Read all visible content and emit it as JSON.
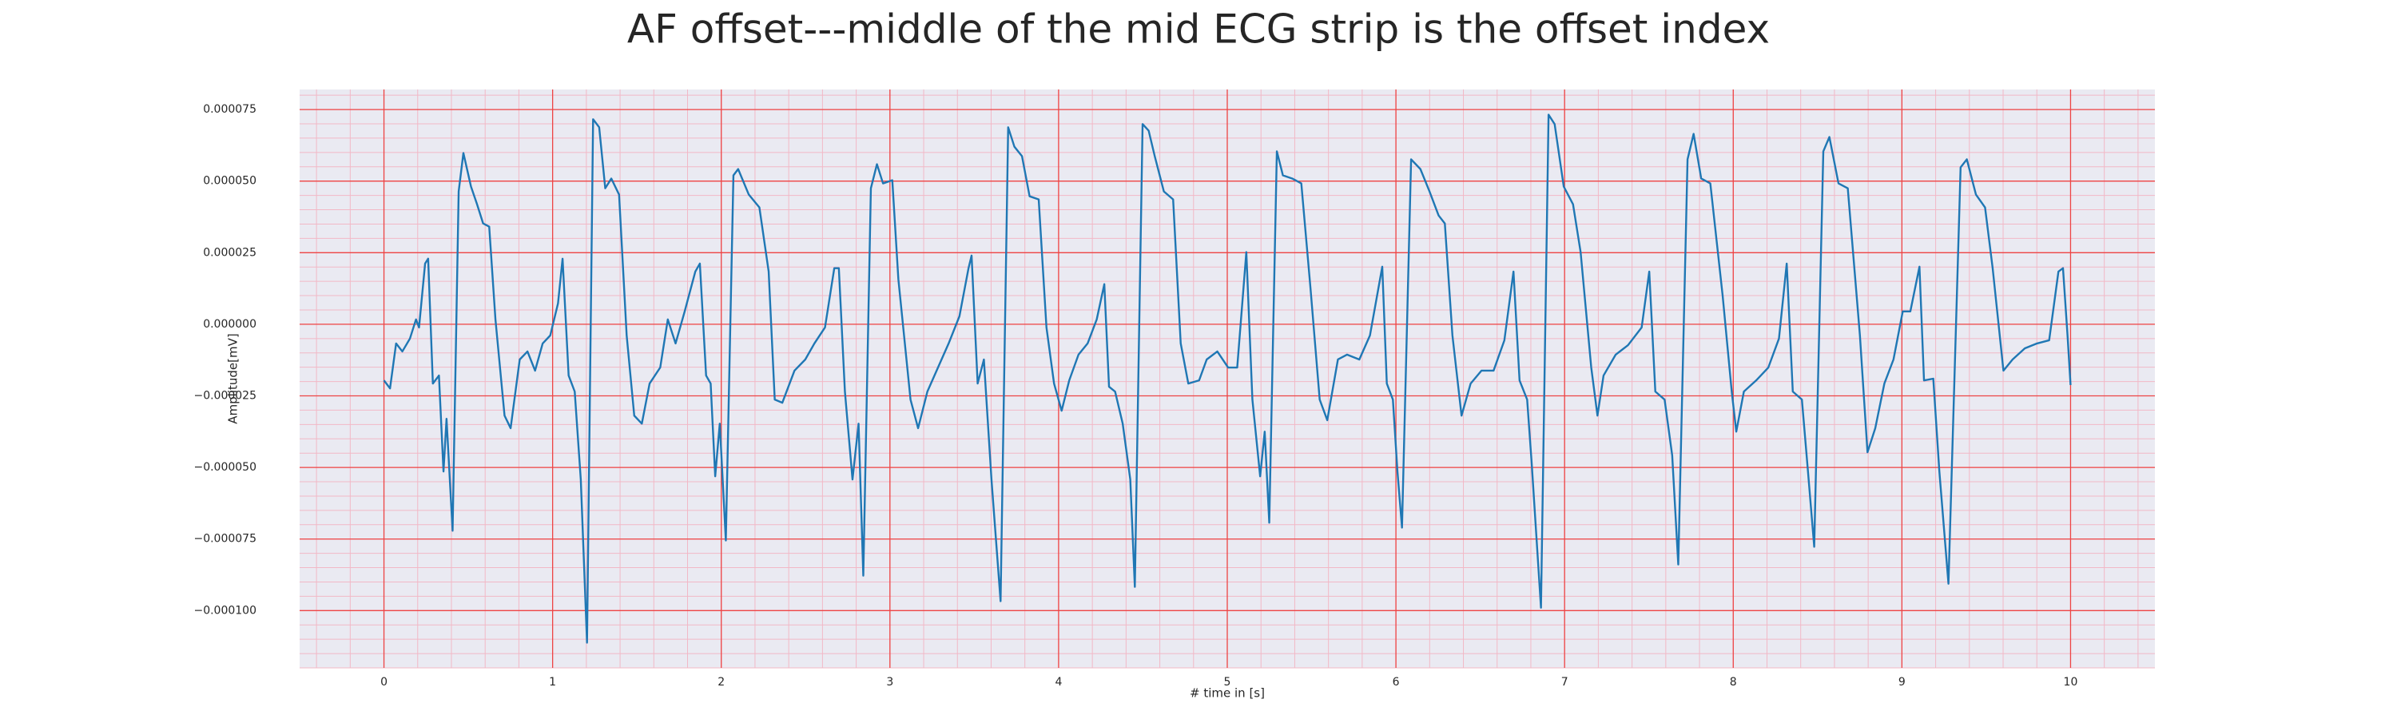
{
  "chart_data": {
    "type": "line",
    "title": "AF offset---middle of the mid ECG strip is the offset index",
    "xlabel": "# time in [s]",
    "ylabel": "Amplitude[mV]",
    "xlim": [
      -0.5,
      10.5
    ],
    "ylim": [
      -0.00012,
      8.2e-05
    ],
    "xticks": [
      0,
      1,
      2,
      3,
      4,
      5,
      6,
      7,
      8,
      9,
      10
    ],
    "yticks": [
      {
        "value": -0.0001,
        "label": "−0.000100"
      },
      {
        "value": -7.5e-05,
        "label": "−0.000075"
      },
      {
        "value": -5e-05,
        "label": "−0.000050"
      },
      {
        "value": -2.5e-05,
        "label": "−0.000025"
      },
      {
        "value": 0,
        "label": "0.000000"
      },
      {
        "value": 2.5e-05,
        "label": "0.000025"
      },
      {
        "value": 5e-05,
        "label": "0.000050"
      },
      {
        "value": 7.5e-05,
        "label": "0.000075"
      }
    ],
    "grid": true,
    "minor_grid": true,
    "x": [
      0,
      0.036,
      0.072,
      0.109,
      0.154,
      0.19,
      0.208,
      0.244,
      0.262,
      0.29,
      0.326,
      0.353,
      0.371,
      0.407,
      0.443,
      0.471,
      0.516,
      0.552,
      0.588,
      0.624,
      0.661,
      0.715,
      0.751,
      0.805,
      0.851,
      0.896,
      0.941,
      0.986,
      1.032,
      1.059,
      1.095,
      1.131,
      1.167,
      1.204,
      1.24,
      1.276,
      1.312,
      1.348,
      1.394,
      1.439,
      1.484,
      1.529,
      1.575,
      1.638,
      1.683,
      1.729,
      1.783,
      1.846,
      1.873,
      1.91,
      1.937,
      1.964,
      1.991,
      2.027,
      2.072,
      2.1,
      2.163,
      2.226,
      2.281,
      2.317,
      2.362,
      2.434,
      2.498,
      2.552,
      2.615,
      2.67,
      2.697,
      2.733,
      2.778,
      2.814,
      2.842,
      2.887,
      2.923,
      2.959,
      3.014,
      3.05,
      3.122,
      3.167,
      3.222,
      3.285,
      3.348,
      3.412,
      3.466,
      3.484,
      3.52,
      3.557,
      3.602,
      3.656,
      3.701,
      3.738,
      3.783,
      3.828,
      3.882,
      3.928,
      3.973,
      4.018,
      4.063,
      4.118,
      4.172,
      4.226,
      4.271,
      4.299,
      4.335,
      4.38,
      4.425,
      4.452,
      4.498,
      4.534,
      4.57,
      4.624,
      4.679,
      4.724,
      4.769,
      4.833,
      4.878,
      4.941,
      5.005,
      5.059,
      5.113,
      5.149,
      5.195,
      5.222,
      5.249,
      5.294,
      5.33,
      5.385,
      5.439,
      5.493,
      5.548,
      5.593,
      5.656,
      5.71,
      5.783,
      5.846,
      5.919,
      5.946,
      5.982,
      6.009,
      6.036,
      6.09,
      6.145,
      6.199,
      6.253,
      6.29,
      6.335,
      6.389,
      6.443,
      6.507,
      6.579,
      6.643,
      6.697,
      6.733,
      6.778,
      6.805,
      6.86,
      6.905,
      6.941,
      6.995,
      7.05,
      7.095,
      7.158,
      7.195,
      7.231,
      7.303,
      7.376,
      7.457,
      7.502,
      7.538,
      7.593,
      7.638,
      7.674,
      7.729,
      7.765,
      7.81,
      7.864,
      7.937,
      7.991,
      8.018,
      8.063,
      8.136,
      8.208,
      8.271,
      8.317,
      8.353,
      8.407,
      8.443,
      8.48,
      8.534,
      8.57,
      8.624,
      8.679,
      8.751,
      8.796,
      8.842,
      8.896,
      8.95,
      9.005,
      9.05,
      9.104,
      9.131,
      9.186,
      9.222,
      9.276,
      9.348,
      9.385,
      9.439,
      9.493,
      9.538,
      9.602,
      9.656,
      9.729,
      9.801,
      9.873,
      9.928,
      9.955,
      9.982,
      10.0
    ],
    "series": [
      {
        "color": "#1f77b4",
        "values": [
          -1.96e-05,
          -2.24e-05,
          -6.7e-06,
          -9.5e-06,
          -5e-06,
          1.7e-06,
          -1.1e-06,
          2.12e-05,
          2.29e-05,
          -2.07e-05,
          -1.79e-05,
          -5.14e-05,
          -3.3e-05,
          -7.21e-05,
          4.64e-05,
          5.98e-05,
          4.81e-05,
          4.19e-05,
          3.52e-05,
          3.41e-05,
          1.7e-06,
          -3.19e-05,
          -3.63e-05,
          -1.23e-05,
          -9.5e-06,
          -1.62e-05,
          -6.7e-06,
          -3.9e-06,
          7.3e-06,
          2.29e-05,
          -1.79e-05,
          -2.35e-05,
          -5.42e-05,
          -0.0001112,
          7.16e-05,
          6.88e-05,
          4.75e-05,
          5.09e-05,
          4.53e-05,
          -3.9e-06,
          -3.19e-05,
          -3.47e-05,
          -2.07e-05,
          -1.51e-05,
          1.7e-06,
          -6.7e-06,
          4.5e-06,
          1.84e-05,
          2.12e-05,
          -1.79e-05,
          -2.07e-05,
          -5.31e-05,
          -3.47e-05,
          -7.55e-05,
          5.2e-05,
          5.42e-05,
          4.53e-05,
          4.08e-05,
          1.84e-05,
          -2.63e-05,
          -2.74e-05,
          -1.62e-05,
          -1.23e-05,
          -6.7e-06,
          -1.1e-06,
          1.96e-05,
          1.96e-05,
          -2.35e-05,
          -5.42e-05,
          -3.47e-05,
          -8.78e-05,
          4.75e-05,
          5.59e-05,
          4.92e-05,
          5.03e-05,
          1.57e-05,
          -2.63e-05,
          -3.63e-05,
          -2.35e-05,
          -1.51e-05,
          -6.7e-06,
          2.8e-06,
          1.96e-05,
          2.4e-05,
          -2.07e-05,
          -1.23e-05,
          -5.42e-05,
          -9.67e-05,
          6.88e-05,
          6.2e-05,
          5.87e-05,
          4.47e-05,
          4.36e-05,
          -1.1e-06,
          -2.07e-05,
          -3.02e-05,
          -1.96e-05,
          -1.06e-05,
          -6.7e-06,
          1.7e-06,
          1.4e-05,
          -2.18e-05,
          -2.35e-05,
          -3.47e-05,
          -5.42e-05,
          -9.17e-05,
          6.99e-05,
          6.76e-05,
          5.87e-05,
          4.64e-05,
          4.36e-05,
          -6.7e-06,
          -2.07e-05,
          -1.96e-05,
          -1.23e-05,
          -9.5e-06,
          -1.51e-05,
          -1.51e-05,
          2.52e-05,
          -2.63e-05,
          -5.31e-05,
          -3.75e-05,
          -6.93e-05,
          6.04e-05,
          5.2e-05,
          5.09e-05,
          4.92e-05,
          1.29e-05,
          -2.63e-05,
          -3.35e-05,
          -1.23e-05,
          -1.06e-05,
          -1.23e-05,
          -3.9e-06,
          2.01e-05,
          -2.07e-05,
          -2.63e-05,
          -5.14e-05,
          -7.1e-05,
          5.76e-05,
          5.42e-05,
          4.64e-05,
          3.8e-05,
          3.52e-05,
          -3.9e-06,
          -3.19e-05,
          -2.07e-05,
          -1.62e-05,
          -1.62e-05,
          -5.6e-06,
          1.84e-05,
          -1.96e-05,
          -2.63e-05,
          -4.86e-05,
          -9.9e-05,
          7.32e-05,
          6.99e-05,
          4.81e-05,
          4.19e-05,
          2.52e-05,
          -1.51e-05,
          -3.19e-05,
          -1.79e-05,
          -1.06e-05,
          -7.3e-06,
          -1.1e-06,
          1.84e-05,
          -2.35e-05,
          -2.63e-05,
          -4.58e-05,
          -8.39e-05,
          5.76e-05,
          6.65e-05,
          5.09e-05,
          4.92e-05,
          1.01e-05,
          -2.35e-05,
          -3.75e-05,
          -2.35e-05,
          -1.96e-05,
          -1.51e-05,
          -5e-06,
          2.12e-05,
          -2.35e-05,
          -2.63e-05,
          -5.14e-05,
          -7.77e-05,
          6.04e-05,
          6.54e-05,
          4.92e-05,
          4.75e-05,
          -3.9e-06,
          -4.47e-05,
          -3.63e-05,
          -2.07e-05,
          -1.23e-05,
          4.5e-06,
          4.5e-06,
          2.01e-05,
          -1.96e-05,
          -1.9e-05,
          -5.14e-05,
          -9.06e-05,
          5.48e-05,
          5.76e-05,
          4.53e-05,
          4.08e-05,
          1.96e-05,
          -1.62e-05,
          -1.23e-05,
          -8.4e-06,
          -6.7e-06,
          -5.6e-06,
          1.84e-05,
          1.96e-05,
          -3.9e-06,
          -2.12e-05
        ]
      }
    ]
  }
}
